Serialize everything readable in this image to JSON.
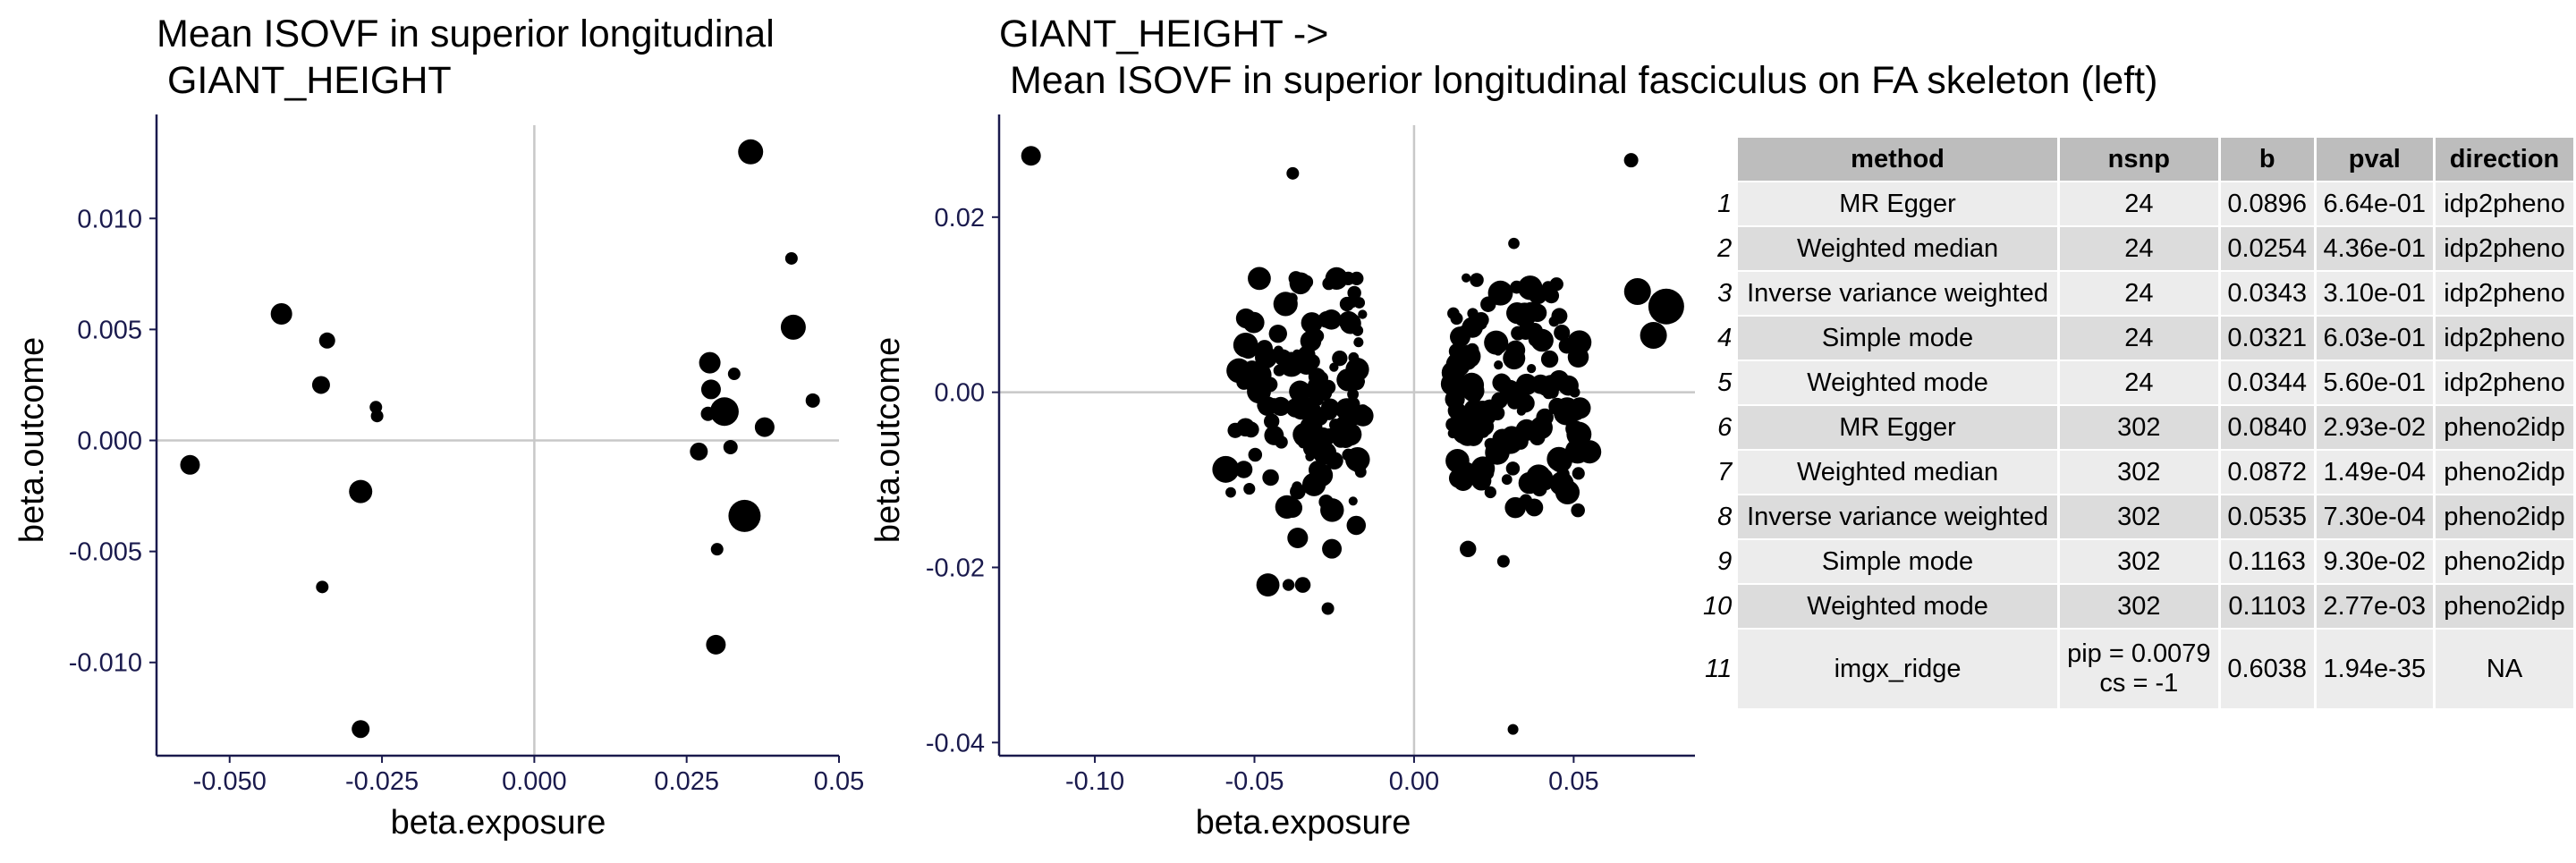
{
  "chart_data": [
    {
      "type": "scatter",
      "title_line1": "Mean ISOVF in superior longitudinal",
      "title_line2": " GIANT_HEIGHT",
      "xlabel": "beta.exposure",
      "ylabel": "beta.outcome",
      "xlim": [
        -0.062,
        0.05
      ],
      "ylim": [
        -0.0142,
        0.0142
      ],
      "xticks": [
        -0.05,
        -0.025,
        0.0,
        0.025,
        0.05
      ],
      "xtick_labels": [
        "-0.050",
        "-0.025",
        "0.000",
        "0.025",
        "0.05"
      ],
      "yticks": [
        -0.01,
        -0.005,
        0.0,
        0.005,
        0.01
      ],
      "ytick_labels": [
        "-0.010",
        "-0.005",
        "0.000",
        "0.005",
        "0.010"
      ],
      "reference_lines": {
        "x": 0,
        "y": 0
      },
      "points": [
        {
          "x": -0.0565,
          "y": -0.0011,
          "s": 11
        },
        {
          "x": -0.0415,
          "y": 0.0057,
          "s": 12
        },
        {
          "x": -0.034,
          "y": 0.0045,
          "s": 9
        },
        {
          "x": -0.035,
          "y": 0.0025,
          "s": 10
        },
        {
          "x": -0.026,
          "y": 0.0015,
          "s": 7
        },
        {
          "x": -0.0258,
          "y": 0.0011,
          "s": 7
        },
        {
          "x": -0.0285,
          "y": -0.0023,
          "s": 13
        },
        {
          "x": -0.0348,
          "y": -0.0066,
          "s": 7
        },
        {
          "x": -0.0285,
          "y": -0.013,
          "s": 10
        },
        {
          "x": 0.0355,
          "y": 0.013,
          "s": 14
        },
        {
          "x": 0.0422,
          "y": 0.0082,
          "s": 7
        },
        {
          "x": 0.0425,
          "y": 0.0051,
          "s": 14
        },
        {
          "x": 0.0457,
          "y": 0.0018,
          "s": 8
        },
        {
          "x": 0.0288,
          "y": 0.0035,
          "s": 12
        },
        {
          "x": 0.0328,
          "y": 0.003,
          "s": 7
        },
        {
          "x": 0.029,
          "y": 0.0023,
          "s": 11
        },
        {
          "x": 0.0285,
          "y": 0.0012,
          "s": 8
        },
        {
          "x": 0.0312,
          "y": 0.0013,
          "s": 16
        },
        {
          "x": 0.0378,
          "y": 0.0006,
          "s": 11
        },
        {
          "x": 0.0322,
          "y": -0.0003,
          "s": 8
        },
        {
          "x": 0.027,
          "y": -0.0005,
          "s": 10
        },
        {
          "x": 0.0345,
          "y": -0.0034,
          "s": 18
        },
        {
          "x": 0.03,
          "y": -0.0049,
          "s": 7
        },
        {
          "x": 0.0298,
          "y": -0.0092,
          "s": 11
        }
      ]
    },
    {
      "type": "scatter",
      "title_line1": "GIANT_HEIGHT ->",
      "title_line2": " Mean ISOVF in superior longitudinal fasciculus on FA skeleton (left)",
      "xlabel": "beta.exposure",
      "ylabel": "beta.outcome",
      "xlim": [
        -0.13,
        0.088
      ],
      "ylim": [
        -0.0415,
        0.0305
      ],
      "xticks": [
        -0.1,
        -0.05,
        0.0,
        0.05
      ],
      "xtick_labels": [
        "-0.10",
        "-0.05",
        "0.00",
        "0.05"
      ],
      "yticks": [
        -0.04,
        -0.02,
        0.0,
        0.02
      ],
      "ytick_labels": [
        "-0.04",
        "-0.02",
        "0.00",
        "0.02"
      ],
      "reference_lines": {
        "x": 0,
        "y": 0
      },
      "n_points": 302,
      "cluster_points": [
        {
          "x": -0.12,
          "y": 0.027,
          "s": 11
        },
        {
          "x": -0.038,
          "y": 0.025,
          "s": 7
        },
        {
          "x": 0.068,
          "y": 0.0265,
          "s": 8
        },
        {
          "x": 0.031,
          "y": -0.0385,
          "s": 6
        },
        {
          "x": 0.07,
          "y": 0.0115,
          "s": 15
        },
        {
          "x": 0.079,
          "y": 0.0098,
          "s": 20
        },
        {
          "x": 0.075,
          "y": 0.0065,
          "s": 15
        },
        {
          "x": 0.055,
          "y": -0.0068,
          "s": 13
        },
        {
          "x": 0.052,
          "y": -0.0018,
          "s": 12
        },
        {
          "x": -0.059,
          "y": -0.0088,
          "s": 15
        },
        {
          "x": -0.027,
          "y": -0.0247,
          "s": 7
        },
        {
          "x": 0.028,
          "y": -0.0193,
          "s": 7
        }
      ]
    }
  ],
  "table": {
    "columns": [
      "method",
      "nsnp",
      "b",
      "pval",
      "direction"
    ],
    "rows": [
      {
        "idx": "1",
        "method": "MR Egger",
        "nsnp": "24",
        "b": "0.0896",
        "pval": "6.64e-01",
        "direction": "idp2pheno"
      },
      {
        "idx": "2",
        "method": "Weighted median",
        "nsnp": "24",
        "b": "0.0254",
        "pval": "4.36e-01",
        "direction": "idp2pheno"
      },
      {
        "idx": "3",
        "method": "Inverse variance weighted",
        "nsnp": "24",
        "b": "0.0343",
        "pval": "3.10e-01",
        "direction": "idp2pheno"
      },
      {
        "idx": "4",
        "method": "Simple mode",
        "nsnp": "24",
        "b": "0.0321",
        "pval": "6.03e-01",
        "direction": "idp2pheno"
      },
      {
        "idx": "5",
        "method": "Weighted mode",
        "nsnp": "24",
        "b": "0.0344",
        "pval": "5.60e-01",
        "direction": "idp2pheno"
      },
      {
        "idx": "6",
        "method": "MR Egger",
        "nsnp": "302",
        "b": "0.0840",
        "pval": "2.93e-02",
        "direction": "pheno2idp"
      },
      {
        "idx": "7",
        "method": "Weighted median",
        "nsnp": "302",
        "b": "0.0872",
        "pval": "1.49e-04",
        "direction": "pheno2idp"
      },
      {
        "idx": "8",
        "method": "Inverse variance weighted",
        "nsnp": "302",
        "b": "0.0535",
        "pval": "7.30e-04",
        "direction": "pheno2idp"
      },
      {
        "idx": "9",
        "method": "Simple mode",
        "nsnp": "302",
        "b": "0.1163",
        "pval": "9.30e-02",
        "direction": "pheno2idp"
      },
      {
        "idx": "10",
        "method": "Weighted mode",
        "nsnp": "302",
        "b": "0.1103",
        "pval": "2.77e-03",
        "direction": "pheno2idp"
      },
      {
        "idx": "11",
        "method": "imgx_ridge",
        "nsnp_line1": "pip = 0.0079",
        "nsnp_line2": "cs = -1",
        "b": "0.6038",
        "pval": "1.94e-35",
        "direction": "NA"
      }
    ]
  }
}
